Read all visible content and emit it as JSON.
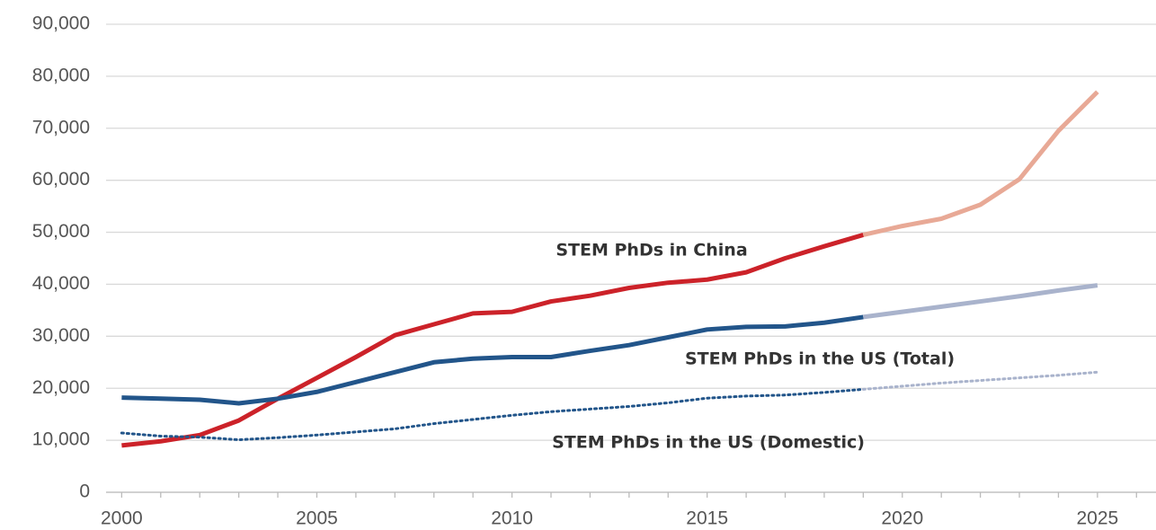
{
  "chart_data": {
    "type": "line",
    "x": [
      2000,
      2001,
      2002,
      2003,
      2004,
      2005,
      2006,
      2007,
      2008,
      2009,
      2010,
      2011,
      2012,
      2013,
      2014,
      2015,
      2016,
      2017,
      2018,
      2019,
      2020,
      2021,
      2022,
      2023,
      2024,
      2025
    ],
    "series": [
      {
        "name": "STEM PhDs in China",
        "color": "#cc2229",
        "style": "solid",
        "values": [
          9000,
          9800,
          11000,
          13800,
          18000,
          22000,
          26000,
          30200,
          32300,
          34400,
          34700,
          36700,
          37800,
          39300,
          40300,
          40900,
          42300,
          45000,
          47300,
          49500,
          null,
          null,
          null,
          null,
          null,
          null
        ]
      },
      {
        "color": "#e8a996",
        "style": "solid",
        "values": [
          null,
          null,
          null,
          null,
          null,
          null,
          null,
          null,
          null,
          null,
          null,
          null,
          null,
          null,
          null,
          null,
          null,
          null,
          null,
          49500,
          51200,
          52600,
          55300,
          60200,
          69500,
          77000
        ]
      },
      {
        "name": "STEM PhDs in the US (Total)",
        "color": "#22558a",
        "style": "solid",
        "values": [
          18200,
          18000,
          17800,
          17100,
          18000,
          19300,
          21200,
          23100,
          25000,
          25700,
          26000,
          26000,
          27200,
          28300,
          29800,
          31300,
          31800,
          31900,
          32600,
          33700,
          null,
          null,
          null,
          null,
          null,
          null
        ]
      },
      {
        "color": "#a9b3cc",
        "style": "solid",
        "values": [
          null,
          null,
          null,
          null,
          null,
          null,
          null,
          null,
          null,
          null,
          null,
          null,
          null,
          null,
          null,
          null,
          null,
          null,
          null,
          33700,
          34700,
          35700,
          36700,
          37700,
          38800,
          39800
        ]
      },
      {
        "name": "STEM PhDs in the US (Domestic)",
        "color": "#22558a",
        "style": "dotted",
        "values": [
          11400,
          10800,
          10600,
          10100,
          10500,
          11000,
          11600,
          12200,
          13200,
          14000,
          14800,
          15500,
          16000,
          16500,
          17200,
          18100,
          18500,
          18700,
          19200,
          19800,
          null,
          null,
          null,
          null,
          null,
          null
        ]
      },
      {
        "color": "#a9b3cc",
        "style": "dotted",
        "values": [
          null,
          null,
          null,
          null,
          null,
          null,
          null,
          null,
          null,
          null,
          null,
          null,
          null,
          null,
          null,
          null,
          null,
          null,
          null,
          19800,
          20400,
          21000,
          21500,
          22000,
          22500,
          23100
        ]
      }
    ],
    "xlim": [
      1999.6,
      2026.5
    ],
    "xticks": [
      2000,
      2005,
      2010,
      2015,
      2020,
      2025
    ],
    "xminorticks": [
      2000,
      2001,
      2002,
      2003,
      2004,
      2005,
      2006,
      2007,
      2008,
      2009,
      2010,
      2011,
      2012,
      2013,
      2014,
      2015,
      2016,
      2017,
      2018,
      2019,
      2020,
      2021,
      2022,
      2023,
      2024,
      2025,
      2026
    ],
    "ylim": [
      0,
      90000
    ],
    "yticks": [
      0,
      {
        "value": 10000,
        "label": "10,000"
      },
      {
        "value": 20000,
        "label": "20,000"
      },
      {
        "value": 30000,
        "label": "30,000"
      },
      {
        "value": 40000,
        "label": "40,000"
      },
      {
        "value": 50000,
        "label": "50,000"
      },
      {
        "value": 60000,
        "label": "60,000"
      },
      {
        "value": 70000,
        "label": "70,000"
      },
      {
        "value": 80000,
        "label": "80,000"
      },
      {
        "value": 90000,
        "label": "90,000"
      }
    ],
    "grid": true
  }
}
